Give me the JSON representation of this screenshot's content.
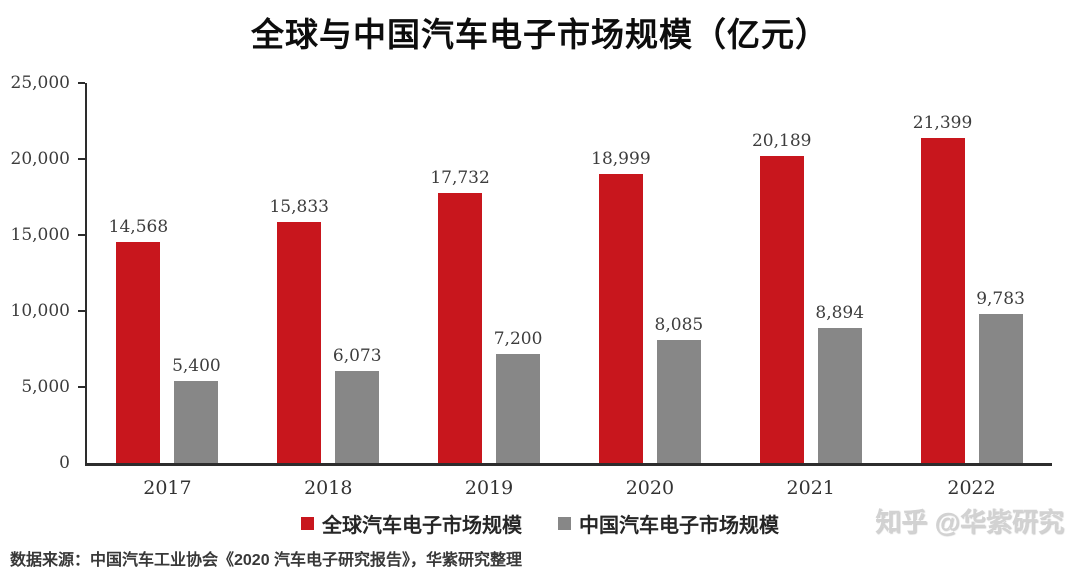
{
  "title": "全球与中国汽车电子市场规模（亿元）",
  "source_note": "数据来源：中国汽车工业协会《2020 汽车电子研究报告》，华紫研究整理",
  "watermark": "知乎 @华紫研究",
  "colors": {
    "global_series": "#c8161d",
    "china_series": "#878787",
    "axis": "#2d2d2d",
    "value_label_text": "#3d3d3d"
  },
  "chart_data": {
    "type": "bar",
    "title": "全球与中国汽车电子市场规模（亿元）",
    "categories": [
      "2017",
      "2018",
      "2019",
      "2020",
      "2021",
      "2022"
    ],
    "series": [
      {
        "key": "global",
        "name": "全球汽车电子市场规模",
        "color": "#c8161d",
        "values": [
          14568,
          15833,
          17732,
          18999,
          20189,
          21399
        ],
        "labels": [
          "14,568",
          "15,833",
          "17,732",
          "18,999",
          "20,189",
          "21,399"
        ]
      },
      {
        "key": "china",
        "name": "中国汽车电子市场规模",
        "color": "#878787",
        "values": [
          5400,
          6073,
          7200,
          8085,
          8894,
          9783
        ],
        "labels": [
          "5,400",
          "6,073",
          "7,200",
          "8,085",
          "8,894",
          "9,783"
        ]
      }
    ],
    "xlabel": "",
    "ylabel": "",
    "ylim": [
      0,
      25000
    ],
    "ytick_interval": 5000,
    "yticks": [
      {
        "value": 25000,
        "label": "25,000"
      },
      {
        "value": 20000,
        "label": "20,000"
      },
      {
        "value": 15000,
        "label": "15,000"
      },
      {
        "value": 10000,
        "label": "10,000"
      },
      {
        "value": 5000,
        "label": "5,000"
      },
      {
        "value": 0,
        "label": "0"
      }
    ],
    "grid": false,
    "legend_position": "bottom"
  }
}
